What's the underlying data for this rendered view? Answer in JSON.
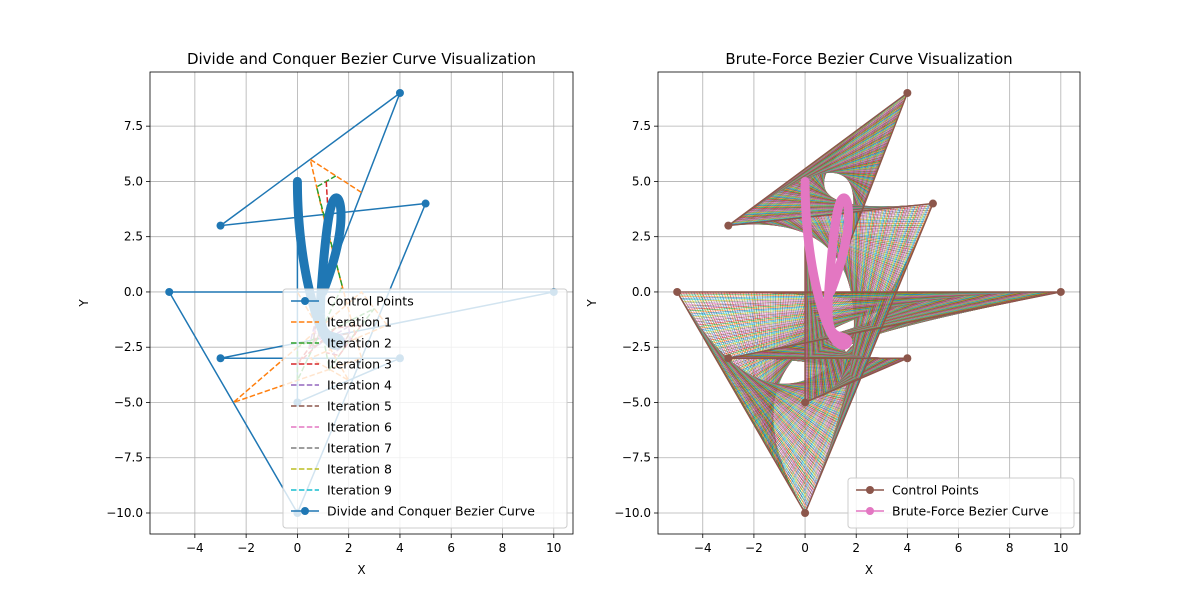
{
  "chart_data": [
    {
      "type": "line",
      "title": "Divide and Conquer Bezier Curve Visualization",
      "xlabel": "X",
      "ylabel": "Y",
      "xlim": [
        -5.75,
        10.75
      ],
      "ylim": [
        -10.95,
        9.95
      ],
      "xticks": [
        -4,
        -2,
        0,
        2,
        4,
        6,
        8,
        10
      ],
      "yticks": [
        -10.0,
        -7.5,
        -5.0,
        -2.5,
        0.0,
        2.5,
        5.0,
        7.5
      ],
      "grid": true,
      "legend_position": "lower-right",
      "control_points": {
        "name": "Control Points",
        "color": "#1f77b4",
        "x": [
          1,
          4,
          -3,
          5,
          0,
          -5,
          10,
          -3,
          4,
          0,
          0
        ],
        "y": [
          0,
          9,
          3,
          4,
          -10,
          0,
          0,
          -3,
          -3,
          -5,
          5
        ]
      },
      "iterations": [
        {
          "name": "Iteration 1",
          "color": "#ff7f0e"
        },
        {
          "name": "Iteration 2",
          "color": "#2ca02c"
        },
        {
          "name": "Iteration 3",
          "color": "#d62728"
        },
        {
          "name": "Iteration 4",
          "color": "#9467bd"
        },
        {
          "name": "Iteration 5",
          "color": "#8c564b"
        },
        {
          "name": "Iteration 6",
          "color": "#e377c2"
        },
        {
          "name": "Iteration 7",
          "color": "#7f7f7f"
        },
        {
          "name": "Iteration 8",
          "color": "#bcbd22"
        },
        {
          "name": "Iteration 9",
          "color": "#17becf"
        }
      ],
      "curve": {
        "name": "Divide and Conquer Bezier Curve",
        "color": "#1f77b4"
      }
    },
    {
      "type": "line",
      "title": "Brute-Force Bezier Curve Visualization",
      "xlabel": "X",
      "ylabel": "Y",
      "xlim": [
        -5.75,
        10.75
      ],
      "ylim": [
        -10.95,
        9.95
      ],
      "xticks": [
        -4,
        -2,
        0,
        2,
        4,
        6,
        8,
        10
      ],
      "yticks": [
        -10.0,
        -7.5,
        -5.0,
        -2.5,
        0.0,
        2.5,
        5.0,
        7.5
      ],
      "grid": true,
      "legend_position": "lower-right",
      "control_points": {
        "name": "Control Points",
        "color": "#8c564b",
        "x": [
          1,
          4,
          -3,
          5,
          0,
          -5,
          10,
          -3,
          4,
          0,
          0
        ],
        "y": [
          0,
          9,
          3,
          4,
          -10,
          0,
          0,
          -3,
          -3,
          -5,
          5
        ]
      },
      "curve": {
        "name": "Brute-Force Bezier Curve",
        "color": "#e377c2"
      }
    }
  ]
}
